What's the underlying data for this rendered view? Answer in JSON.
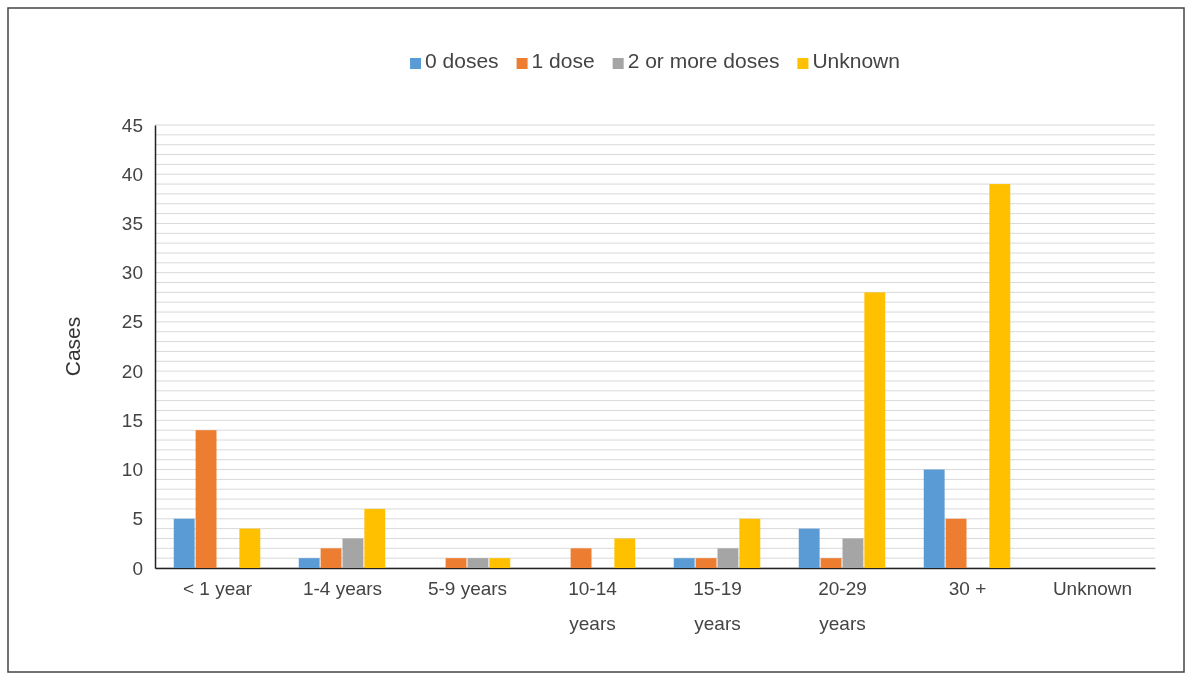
{
  "chart_data": {
    "type": "bar",
    "ylabel": "Cases",
    "categories": [
      "< 1 year",
      "1-4 years",
      "5-9 years",
      "10-14 years",
      "15-19 years",
      "20-29 years",
      "30 +",
      "Unknown"
    ],
    "series": [
      {
        "name": "0 doses",
        "color": "#5b9bd5",
        "values": [
          5,
          1,
          0,
          0,
          1,
          4,
          10,
          0
        ]
      },
      {
        "name": "1 dose",
        "color": "#ed7d31",
        "values": [
          14,
          2,
          1,
          2,
          1,
          1,
          5,
          0
        ]
      },
      {
        "name": "2 or more doses",
        "color": "#a5a5a5",
        "values": [
          0,
          3,
          1,
          0,
          2,
          3,
          0,
          0
        ]
      },
      {
        "name": "Unknown",
        "color": "#ffc000",
        "values": [
          4,
          6,
          1,
          3,
          5,
          28,
          39,
          0
        ]
      }
    ],
    "ylim": [
      0,
      45
    ],
    "yticks": [
      0,
      {
        "value": 1,
        "label": null
      },
      {
        "value": 2,
        "label": null
      },
      {
        "value": 3,
        "label": null
      },
      {
        "value": 4,
        "label": null
      },
      5,
      {
        "value": 6,
        "label": null
      },
      {
        "value": 7,
        "label": null
      },
      {
        "value": 8,
        "label": null
      },
      {
        "value": 9,
        "label": null
      },
      10,
      {
        "value": 11,
        "label": null
      },
      {
        "value": 12,
        "label": null
      },
      {
        "value": 13,
        "label": null
      },
      {
        "value": 14,
        "label": null
      },
      15,
      {
        "value": 16,
        "label": null
      },
      {
        "value": 17,
        "label": null
      },
      {
        "value": 18,
        "label": null
      },
      {
        "value": 19,
        "label": null
      },
      20,
      {
        "value": 21,
        "label": null
      },
      {
        "value": 22,
        "label": null
      },
      {
        "value": 23,
        "label": null
      },
      {
        "value": 24,
        "label": null
      },
      25,
      {
        "value": 26,
        "label": null
      },
      {
        "value": 27,
        "label": null
      },
      {
        "value": 28,
        "label": null
      },
      {
        "value": 29,
        "label": null
      },
      30,
      {
        "value": 31,
        "label": null
      },
      {
        "value": 32,
        "label": null
      },
      {
        "value": 33,
        "label": null
      },
      {
        "value": 34,
        "label": null
      },
      35,
      {
        "value": 36,
        "label": null
      },
      {
        "value": 37,
        "label": null
      },
      {
        "value": 38,
        "label": null
      },
      {
        "value": 39,
        "label": null
      },
      40,
      {
        "value": 41,
        "label": null
      },
      {
        "value": 42,
        "label": null
      },
      {
        "value": 43,
        "label": null
      },
      {
        "value": 44,
        "label": null
      },
      45
    ],
    "grid": "y",
    "legend": "top"
  }
}
